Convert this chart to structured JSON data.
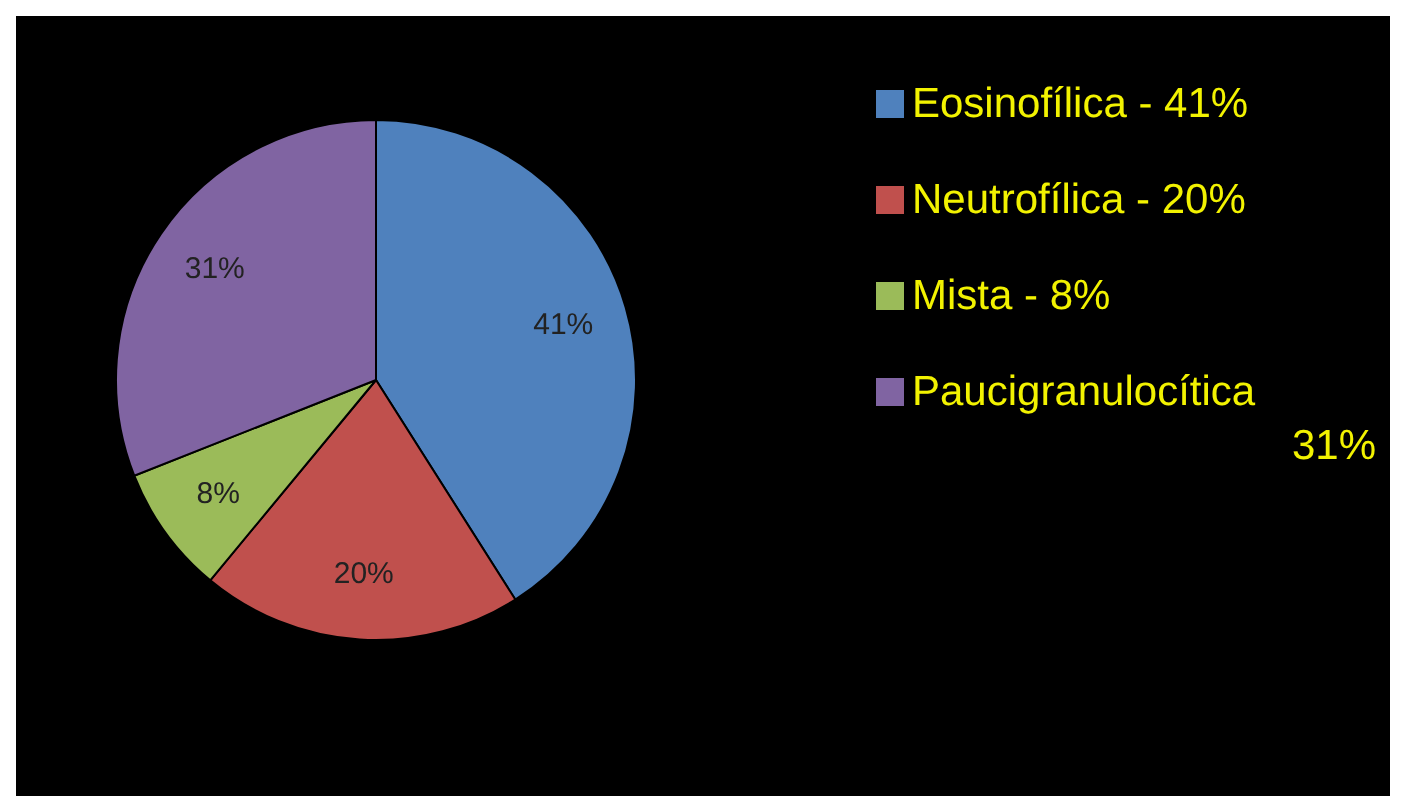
{
  "chart_data": {
    "type": "pie",
    "categories": [
      "Eosinofílica - 41%",
      "Neutrofílica - 20%",
      "Mista - 8%",
      "Paucigranulocítica 31%"
    ],
    "values": [
      41,
      20,
      8,
      31
    ],
    "colors": [
      "#4f81bd",
      "#c0504d",
      "#9bbb59",
      "#8064a2"
    ],
    "value_labels": [
      "41%",
      "20%",
      "8%",
      "31%"
    ],
    "legend": "right"
  }
}
